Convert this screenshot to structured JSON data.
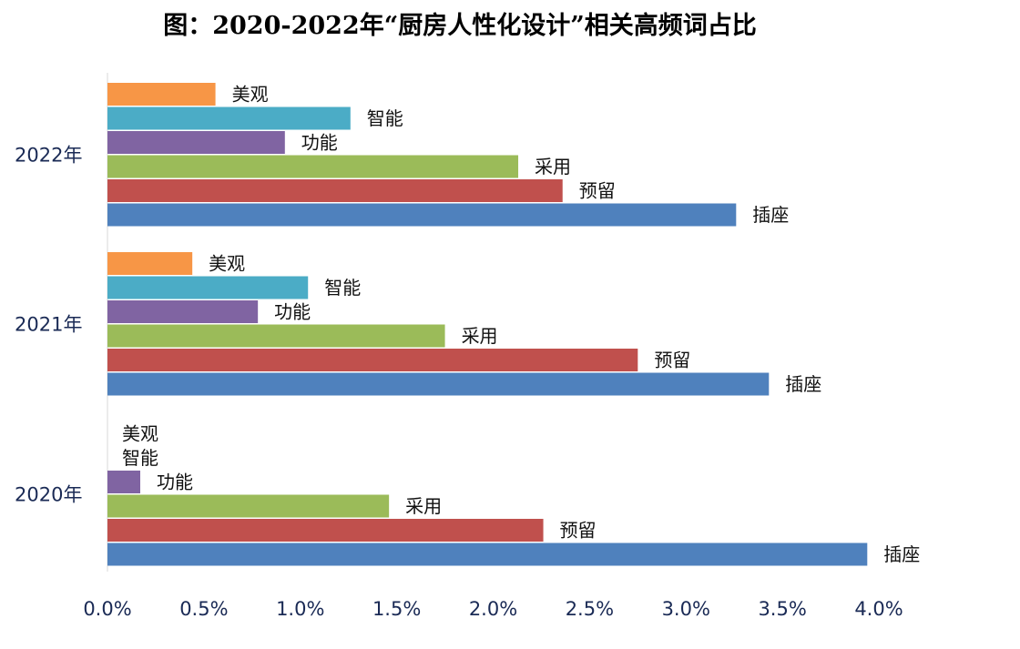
{
  "chart_data": {
    "type": "bar",
    "orientation": "horizontal",
    "title": "图：2020-2022年“厨房人性化设计”相关高频词占比",
    "xlabel": "",
    "ylabel": "",
    "xlim": [
      0,
      0.04
    ],
    "x_ticks": [
      "0.0%",
      "0.5%",
      "1.0%",
      "1.5%",
      "2.0%",
      "2.5%",
      "3.0%",
      "3.5%",
      "4.0%"
    ],
    "grid": false,
    "legend": "none",
    "groups": [
      {
        "name": "2022年",
        "bars": [
          {
            "label": "美观",
            "value": 0.0056,
            "color": "#f79646"
          },
          {
            "label": "智能",
            "value": 0.0126,
            "color": "#4bacc6"
          },
          {
            "label": "功能",
            "value": 0.0092,
            "color": "#8064a2"
          },
          {
            "label": "采用",
            "value": 0.0213,
            "color": "#9bbb59"
          },
          {
            "label": "预留",
            "value": 0.0236,
            "color": "#c0504d"
          },
          {
            "label": "插座",
            "value": 0.0326,
            "color": "#4f81bd"
          }
        ]
      },
      {
        "name": "2021年",
        "bars": [
          {
            "label": "美观",
            "value": 0.0044,
            "color": "#f79646"
          },
          {
            "label": "智能",
            "value": 0.0104,
            "color": "#4bacc6"
          },
          {
            "label": "功能",
            "value": 0.0078,
            "color": "#8064a2"
          },
          {
            "label": "采用",
            "value": 0.0175,
            "color": "#9bbb59"
          },
          {
            "label": "预留",
            "value": 0.0275,
            "color": "#c0504d"
          },
          {
            "label": "插座",
            "value": 0.0343,
            "color": "#4f81bd"
          }
        ]
      },
      {
        "name": "2020年",
        "bars": [
          {
            "label": "美观",
            "value": 0.0,
            "color": "#f79646"
          },
          {
            "label": "智能",
            "value": 0.0,
            "color": "#4bacc6"
          },
          {
            "label": "功能",
            "value": 0.0017,
            "color": "#8064a2"
          },
          {
            "label": "采用",
            "value": 0.0146,
            "color": "#9bbb59"
          },
          {
            "label": "预留",
            "value": 0.0226,
            "color": "#c0504d"
          },
          {
            "label": "插座",
            "value": 0.0394,
            "color": "#4f81bd"
          }
        ]
      }
    ]
  }
}
